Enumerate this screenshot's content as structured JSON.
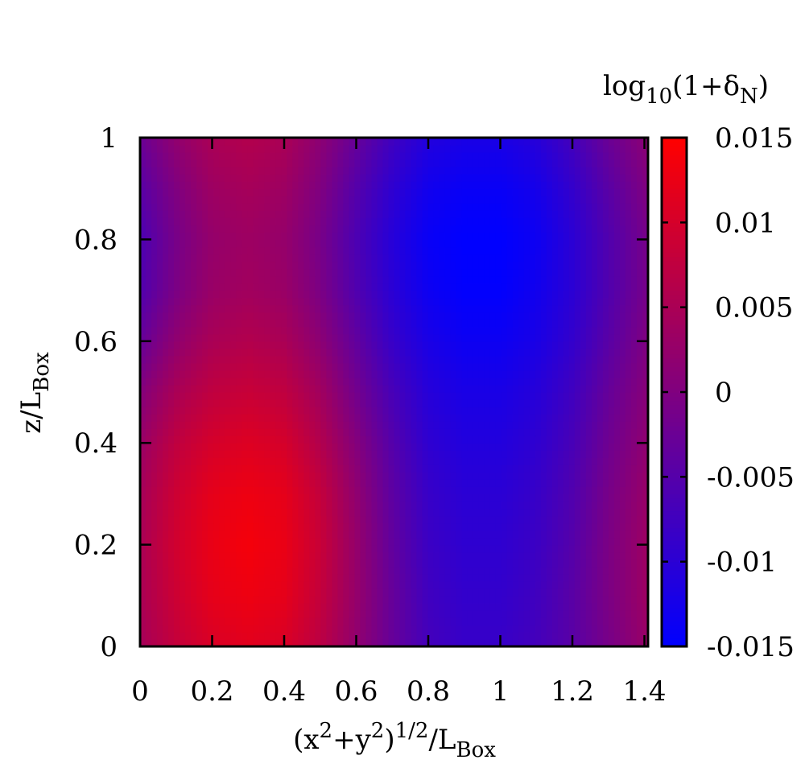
{
  "chart_data": {
    "type": "heatmap",
    "title": "",
    "xlabel": {
      "base": "(x",
      "sup1": "2",
      "mid": "+y",
      "sup2": "2",
      "close": ")",
      "sup3": "1/2",
      "slash": "/L",
      "sub": "Box"
    },
    "ylabel": {
      "base": "z/L",
      "sub": "Box"
    },
    "colorbar_label": {
      "pre": "log",
      "sub1": "10",
      "mid": "(1+δ",
      "sub2": "N",
      "close": ")"
    },
    "xlim": [
      0,
      1.41
    ],
    "ylim": [
      0,
      1
    ],
    "x_ticks": [
      0,
      0.2,
      0.4,
      0.6,
      0.8,
      1,
      1.2,
      1.4
    ],
    "x_tick_labels": [
      "0",
      "0.2",
      "0.4",
      "0.6",
      "0.8",
      "1",
      "1.2",
      "1.4"
    ],
    "y_ticks": [
      0,
      0.2,
      0.4,
      0.6,
      0.8,
      1
    ],
    "y_tick_labels": [
      "0",
      "0.2",
      "0.4",
      "0.6",
      "0.8",
      "1"
    ],
    "colorbar": {
      "range": [
        -0.015,
        0.015
      ],
      "ticks": [
        0.015,
        0.01,
        0.005,
        0,
        -0.005,
        -0.01,
        -0.015
      ],
      "tick_labels": [
        "0.015",
        "0.01",
        "0.005",
        "0",
        "-0.005",
        "-0.01",
        "-0.015"
      ],
      "colormap": [
        "#0000ff",
        "#ff0000"
      ]
    },
    "field": {
      "description_values": "log10(1+delta_N) sampled on a 15 x 11 grid",
      "x": [
        0,
        0.1,
        0.2,
        0.3,
        0.4,
        0.5,
        0.6,
        0.7,
        0.8,
        0.9,
        1.0,
        1.1,
        1.2,
        1.3,
        1.41
      ],
      "y": [
        0,
        0.1,
        0.2,
        0.3,
        0.4,
        0.5,
        0.6,
        0.7,
        0.8,
        0.9,
        1.0
      ],
      "z": [
        [
          0.0045,
          0.008,
          0.0105,
          0.0115,
          0.0105,
          0.007,
          0.002,
          -0.003,
          -0.007,
          -0.0085,
          -0.0085,
          -0.007,
          -0.0045,
          -0.001,
          0.003
        ],
        [
          0.005,
          0.009,
          0.012,
          0.013,
          0.012,
          0.008,
          0.0025,
          -0.003,
          -0.0075,
          -0.009,
          -0.009,
          -0.0075,
          -0.0045,
          -0.0005,
          0.0035
        ],
        [
          0.005,
          0.0095,
          0.0125,
          0.0138,
          0.0125,
          0.0085,
          0.0025,
          -0.0035,
          -0.008,
          -0.0095,
          -0.0095,
          -0.008,
          -0.005,
          -0.0005,
          0.0035
        ],
        [
          0.0045,
          0.009,
          0.012,
          0.013,
          0.012,
          0.008,
          0.002,
          -0.004,
          -0.0085,
          -0.01,
          -0.01,
          -0.0085,
          -0.0055,
          -0.001,
          0.003
        ],
        [
          0.003,
          0.0075,
          0.01,
          0.011,
          0.01,
          0.006,
          0.0005,
          -0.005,
          -0.0095,
          -0.011,
          -0.011,
          -0.0095,
          -0.0065,
          -0.002,
          0.002
        ],
        [
          0.0005,
          0.005,
          0.0075,
          0.0085,
          0.0075,
          0.004,
          -0.0015,
          -0.0065,
          -0.0105,
          -0.012,
          -0.012,
          -0.0105,
          -0.0075,
          -0.003,
          0.001
        ],
        [
          -0.003,
          0.002,
          0.005,
          0.006,
          0.005,
          0.0015,
          -0.0035,
          -0.0085,
          -0.012,
          -0.0135,
          -0.0135,
          -0.012,
          -0.009,
          -0.0045,
          0.0
        ],
        [
          -0.0055,
          -0.0005,
          0.003,
          0.004,
          0.003,
          -0.0005,
          -0.0055,
          -0.01,
          -0.0135,
          -0.0148,
          -0.0148,
          -0.013,
          -0.01,
          -0.0055,
          -0.001
        ],
        [
          -0.006,
          -0.001,
          0.0025,
          0.0035,
          0.0025,
          -0.001,
          -0.006,
          -0.0105,
          -0.014,
          -0.015,
          -0.015,
          -0.0135,
          -0.01,
          -0.0055,
          -0.001
        ],
        [
          -0.0045,
          0.0,
          0.0035,
          0.0045,
          0.0035,
          0.0,
          -0.005,
          -0.0095,
          -0.013,
          -0.014,
          -0.014,
          -0.0125,
          -0.009,
          -0.0045,
          0.0
        ],
        [
          -0.0025,
          0.002,
          0.005,
          0.006,
          0.005,
          0.0015,
          -0.003,
          -0.0075,
          -0.011,
          -0.012,
          -0.012,
          -0.0105,
          -0.007,
          -0.0025,
          0.0015
        ]
      ]
    }
  }
}
